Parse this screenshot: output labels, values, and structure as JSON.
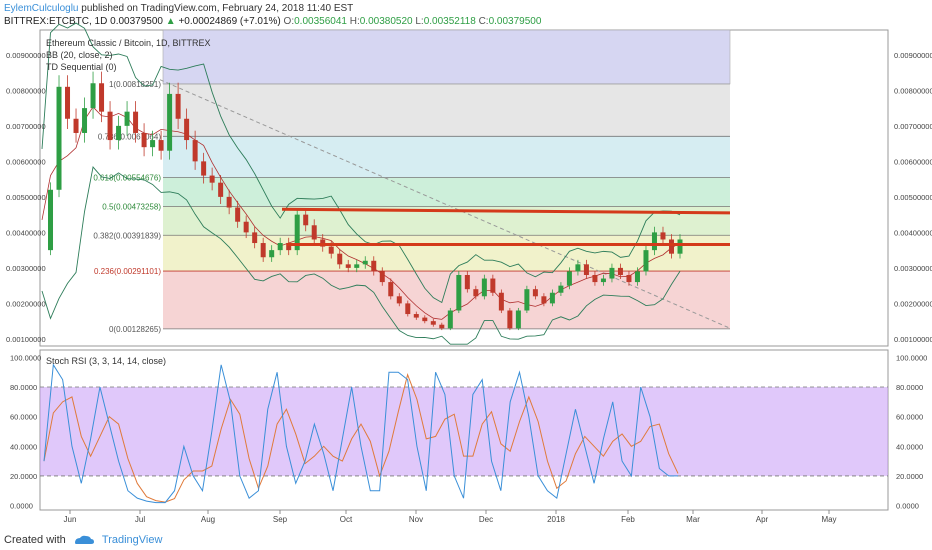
{
  "header": {
    "author": "EylemCulculoglu",
    "published_text": "published on TradingView.com, February 24, 2018 11:40 EST",
    "symbol": "BITTREX:ETCBTC, 1D",
    "last": "0.00379500",
    "change": "+0.00024869 (+7.01%)",
    "o_label": "O:",
    "o_val": "0.00356041",
    "h_label": "H:",
    "h_val": "0.00380520",
    "l_label": "L:",
    "l_val": "0.00352118",
    "c_label": "C:",
    "c_val": "0.00379500"
  },
  "legend": {
    "title": "Ethereum Classic / Bitcoin, 1D, BITTREX",
    "bb": "BB (20, close, 2)",
    "td": "TD Sequential (0)",
    "rsi": "Stoch RSI (3, 3, 14, 14, close)"
  },
  "footer": {
    "created_with": "Created with",
    "brand": "TradingView"
  },
  "colors": {
    "bull": "#2e9e44",
    "bear": "#c0392b",
    "resistance": "#d43a1a",
    "k_line": "#3a8fd8",
    "d_line": "#e07a3a",
    "rsi_band": "#c79af5"
  },
  "chart_data": {
    "type": "line",
    "price_axis": {
      "ticks": [
        "0.00900000",
        "0.00800000",
        "0.00700000",
        "0.00600000",
        "0.00500000",
        "0.00400000",
        "0.00300000",
        "0.00200000",
        "0.00100000"
      ],
      "ylim": [
        0.0008,
        0.0097
      ]
    },
    "rsi_axis": {
      "ticks": [
        "100.0000",
        "80.0000",
        "60.0000",
        "40.0000",
        "20.0000",
        "0.0000"
      ],
      "ylim": [
        -3,
        105
      ]
    },
    "x_ticks": [
      "Jun",
      "Jul",
      "Aug",
      "Sep",
      "Oct",
      "Nov",
      "Dec",
      "2018",
      "Feb",
      "Mar",
      "Apr",
      "May"
    ],
    "fib_levels": [
      {
        "label": "0(0.00128265)",
        "value": 0.00128265,
        "color": "#e8b4b4"
      },
      {
        "label": "0.236(0.00291101)",
        "value": 0.00291101,
        "color": "#f0e6a0"
      },
      {
        "label": "0.382(0.00391839)",
        "value": 0.00391839,
        "color": "#d5ecc0"
      },
      {
        "label": "0.5(0.00473258)",
        "value": 0.00473258,
        "color": "#b6e6c9"
      },
      {
        "label": "0.618(0.00554676)",
        "value": 0.00554676,
        "color": "#bfe6ea"
      },
      {
        "label": "0.786(0.0067064)",
        "value": 0.0067064,
        "color": "#d8e4f2"
      },
      {
        "label": "1(0.00818251)",
        "value": 0.00818251,
        "color": "#e0e0e0"
      }
    ],
    "fib_top": 0.0097,
    "resistance_lines": [
      {
        "value_start": 0.00465,
        "value_end": 0.00455
      },
      {
        "value_start": 0.00366,
        "value_end": 0.00366
      }
    ],
    "price_series": {
      "name": "close",
      "values": [
        0.0035,
        0.0052,
        0.0081,
        0.0072,
        0.0068,
        0.0075,
        0.0082,
        0.0074,
        0.0066,
        0.007,
        0.0074,
        0.0068,
        0.0064,
        0.0066,
        0.0063,
        0.0079,
        0.0072,
        0.0066,
        0.006,
        0.0056,
        0.0054,
        0.005,
        0.0047,
        0.0043,
        0.004,
        0.0037,
        0.0033,
        0.0035,
        0.0037,
        0.0035,
        0.0045,
        0.0042,
        0.0038,
        0.0036,
        0.0034,
        0.0031,
        0.003,
        0.0031,
        0.0032,
        0.0029,
        0.0026,
        0.0022,
        0.002,
        0.0017,
        0.0016,
        0.0015,
        0.0014,
        0.0013,
        0.0018,
        0.0028,
        0.0024,
        0.0022,
        0.0027,
        0.0023,
        0.0018,
        0.0013,
        0.0018,
        0.0024,
        0.0022,
        0.002,
        0.0023,
        0.0025,
        0.0029,
        0.0031,
        0.0028,
        0.0026,
        0.0027,
        0.003,
        0.0028,
        0.0026,
        0.0029,
        0.0035,
        0.004,
        0.0038,
        0.0034,
        0.0038
      ]
    },
    "stoch_k": [
      30,
      95,
      85,
      40,
      15,
      45,
      80,
      55,
      30,
      10,
      5,
      3,
      2,
      2,
      10,
      40,
      20,
      10,
      50,
      95,
      70,
      20,
      5,
      10,
      65,
      90,
      40,
      15,
      30,
      55,
      35,
      10,
      45,
      80,
      40,
      10,
      10,
      90,
      90,
      85,
      40,
      10,
      90,
      75,
      20,
      5,
      75,
      85,
      30,
      10,
      70,
      90,
      60,
      20,
      10,
      5,
      35,
      65,
      40,
      15,
      45,
      70,
      30,
      20,
      80,
      60,
      25,
      20,
      20
    ]
  }
}
